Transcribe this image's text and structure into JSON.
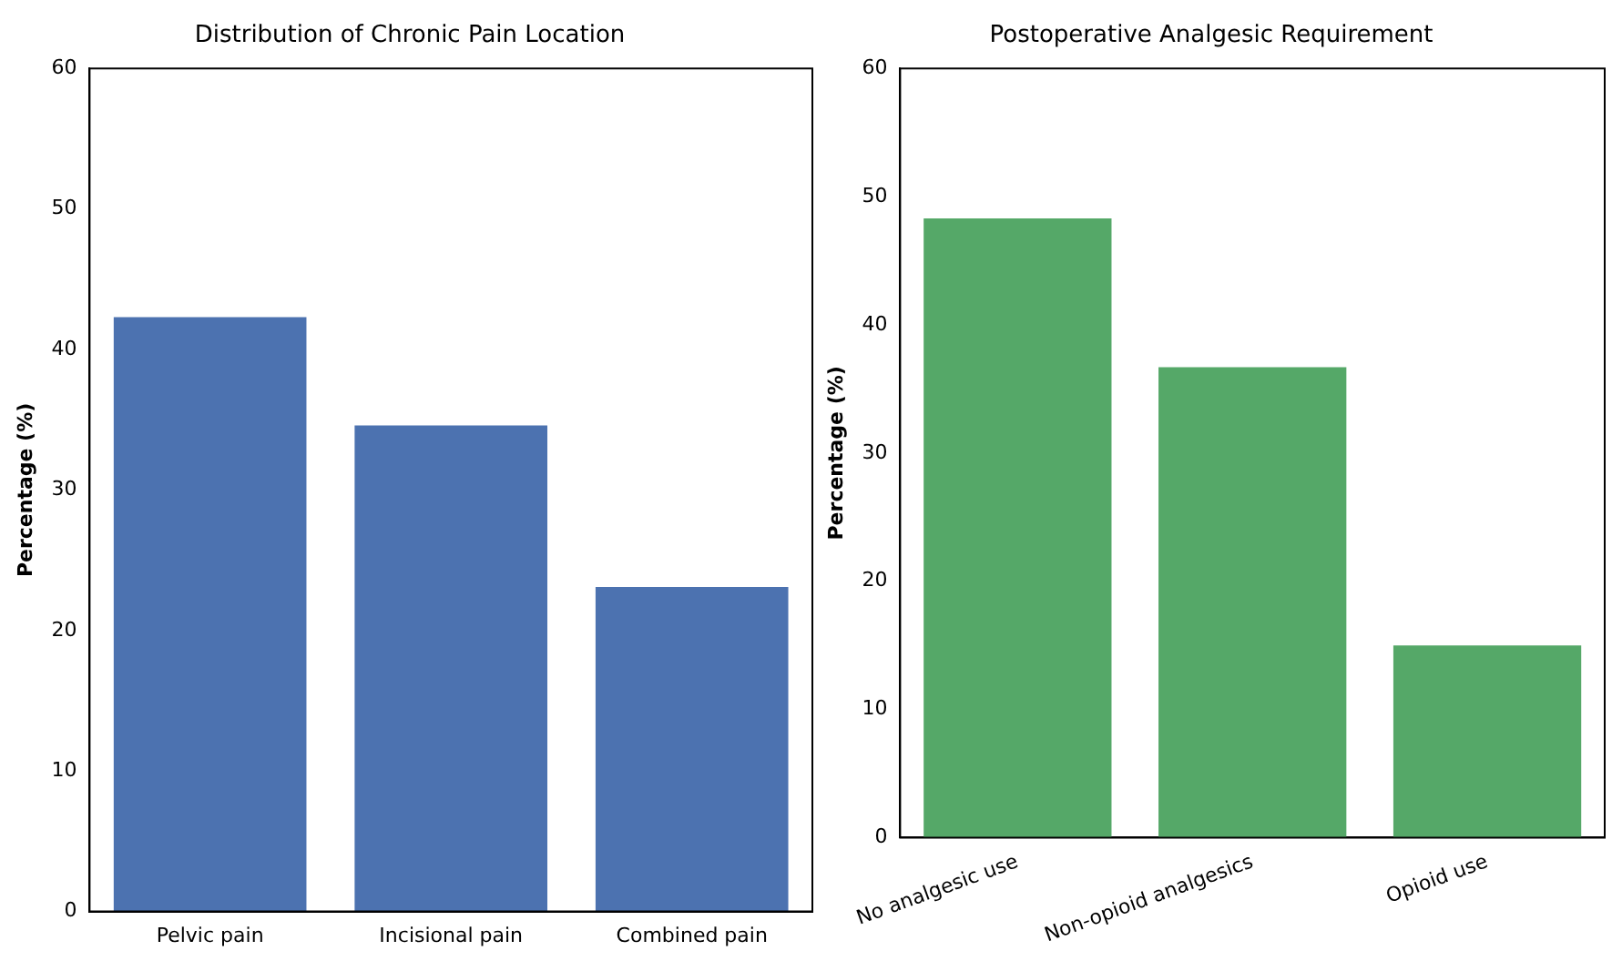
{
  "chart_data": [
    {
      "type": "bar",
      "title": "Distribution of Chronic Pain Location",
      "ylabel": "Percentage (%)",
      "categories": [
        "Pelvic pain",
        "Incisional pain",
        "Combined pain"
      ],
      "values": [
        42.3,
        34.6,
        23.1
      ],
      "color": "#4c72b0",
      "ylim": [
        0,
        60
      ],
      "yticks": [
        0,
        10,
        20,
        30,
        40,
        50,
        60
      ],
      "grid": false,
      "legend": false
    },
    {
      "type": "bar",
      "title": "Postoperative Analgesic Requirement",
      "ylabel": "Percentage (%)",
      "categories": [
        "No analgesic use",
        "Non-opioid analgesics",
        "Opioid use"
      ],
      "values": [
        48.3,
        36.7,
        15.0
      ],
      "color": "#55a868",
      "ylim": [
        0,
        60
      ],
      "yticks": [
        0,
        10,
        20,
        30,
        40,
        50,
        60
      ],
      "grid": false,
      "legend": false
    }
  ]
}
